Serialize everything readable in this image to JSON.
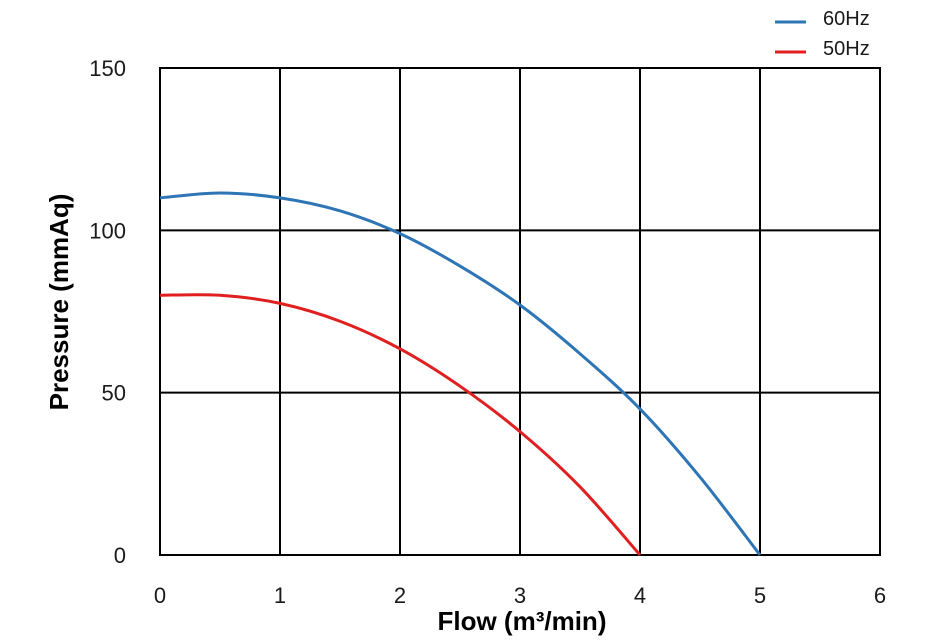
{
  "chart_data": {
    "type": "line",
    "xlabel": "Flow (m³/min)",
    "ylabel": "Pressure (mmAq)",
    "xlim": [
      0,
      6
    ],
    "ylim": [
      0,
      150
    ],
    "x_ticks": [
      0,
      1,
      2,
      3,
      4,
      5,
      6
    ],
    "y_ticks": [
      0,
      50,
      100,
      150
    ],
    "grid": true,
    "legend": "top-right",
    "series": [
      {
        "name": "60Hz",
        "color": "#2E75B6",
        "x": [
          0,
          0.5,
          1,
          1.5,
          2,
          2.5,
          3,
          3.5,
          4,
          4.5,
          5
        ],
        "y": [
          110,
          111.5,
          110,
          106,
          99,
          89,
          77,
          62,
          45,
          24,
          0
        ]
      },
      {
        "name": "50Hz",
        "color": "#E02020",
        "x": [
          0,
          0.5,
          1,
          1.5,
          2,
          2.5,
          3,
          3.5,
          4
        ],
        "y": [
          80,
          80,
          77.5,
          72,
          63.5,
          52,
          38,
          21,
          0
        ]
      }
    ]
  }
}
